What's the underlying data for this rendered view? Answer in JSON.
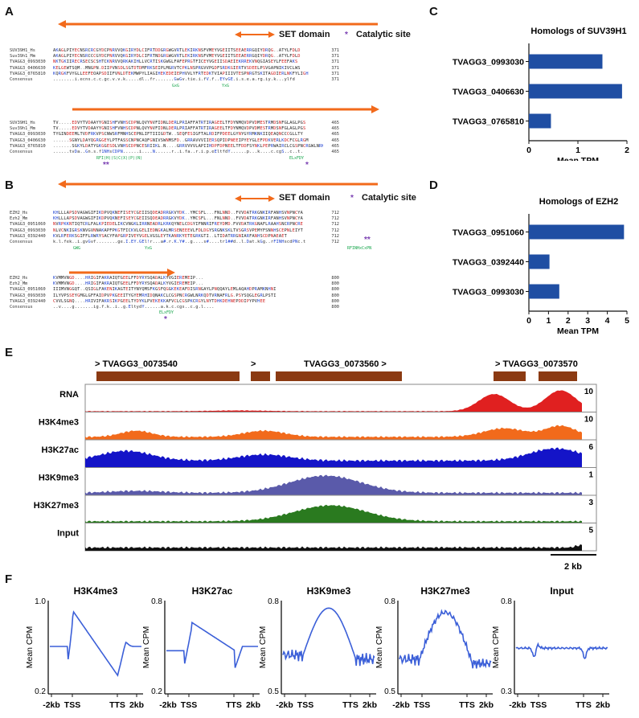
{
  "panels": {
    "A": "A",
    "B": "B",
    "C": "C",
    "D": "D",
    "E": "E",
    "F": "F"
  },
  "set_domain_label": "SET domain",
  "catalytic_label": "Catalytic site",
  "alignA": {
    "block1": [
      {
        "name": "SUV39H1_Hs",
        "seq": "AKAGLPIYECNSRCRCGYDCPNRVVQKGIRYDLCIFRTDDGRGWGVRTLEKIRKNSFVMEYVGEIITSEEAERRGQIYDRQG..ATYLFDLD",
        "num": "371"
      },
      {
        "name": "Suv39h1_Mm",
        "seq": "AKAGLPIYECNSRCCCGYDCPNRVVQKGIRYDLCIFRTNDGRGWGVRTLEKIRKNSFVMEYVGEIITSEEAERRGQIYDRQG..ATYLFDLD",
        "num": "371"
      },
      {
        "name": "TVAGG3_0993030",
        "seq": "NKTGKIIRECRSECSCSHTCKNRVVQRKAKIHLLVCRTISKGWGLFAFEPRGTFICEYVGEIISDAEIEKRREKVNQGIASEYLFEEFAKS",
        "num": "371"
      },
      {
        "name": "TVAGG3_0406630",
        "seq": "KELGEWTSQM..MNGPN.DIIPVNSDLSGTDTDMFRKSEIPLMGRVTCPKLNSPRGVVPGDFSRDKGIERTVSDEELPSVGAPNIKIVCLWS",
        "num": "371"
      },
      {
        "name": "TVAGG3_0765810",
        "seq": "KQRGKFVYGLLEEFEOAPSDIIFVNLDTEKMWPYLIAGIHEKEDEIEPHVVLYFRTEDKTVIAPIIIVTESPNRGTSKITAGDIERLNKFYLIGH",
        "num": "371"
      },
      {
        "name": "Consensus",
        "seq": "........i.ecns.c.c.gc.v.v.k.....dl..fr.......GwGv.tie.i.fV.f..EYvGE.i.s.e.a.rg.iy.k...ylfd",
        "num": "371"
      }
    ],
    "block2": [
      {
        "name": "SUV39H1_Hs",
        "seq": "TV.....EDVYTVDAAYYGNISHFVNHSCDPNLQVYNVFIDNLDERLPRIAFFATRTIRAGEELTFDYNMQVDPVDMESTRMDSNFGLAGLPGS",
        "num": "465"
      },
      {
        "name": "Suv39h1_Mm",
        "seq": "TV.....EDVYTVDAAYYGNISHFVNHSCDPNLQVYNVFIDNLDERLPRIAFFATRTIRAGEELTFDYNMQVDPVDMESTRMDSNFGLAGLPGS",
        "num": "465"
      },
      {
        "name": "TVAGG3_0993030",
        "seq": "TYGINDEEMLTVDFRKVPSCNWSRFMNHSCEPNLIFTIIIGDTW..SEQFESIGFTALRDIFPDEELGYNYGYRMKNKIIQEAQNCCCGLLTY",
        "num": "465"
      },
      {
        "name": "TVAGG3_0406630",
        "seq": "......SGNYLDAYQGRGGEYLPTFASSCNPNCAQFGNIVSWNMSFD..GRRAVVVIIERSQPIDPNEEIPYEYGLEFPDKVERLKDCFCGLRGM",
        "num": "465"
      },
      {
        "name": "TVAGG3_0765810",
        "seq": ".......SGKYLDATYGKGGESDLVNHSCDPNCESRIIKL.N....GRRVVVVLAPIIHDPFDPNEELTFDDFSYNKLPEPRWAIRCLCGSPNCRGWLNRK",
        "num": "465"
      },
      {
        "name": "Consensus",
        "seq": "......tvDa..Gn.s.f1NHsCDPN......i....N......r..i.fa..r.i.p.eEltfdY......p...k....c.cgS..c..t.",
        "num": "465"
      }
    ],
    "markers": [
      "RFI(H)(S)C(X)(P)(N)",
      "GxG",
      "YxG",
      "ELxFDY"
    ]
  },
  "alignB": {
    "block1": [
      {
        "name": "EZH2_Hs",
        "seq": "KHLLLAPSDVAGWGIFIKDPVQKNEFISEYCGEIISQDEADRRGKVYDK..YMCSFL...FNLNND..FVVDATRKGNKIRFANHSVNPNCYA",
        "num": "712"
      },
      {
        "name": "Ezh2_Mm",
        "seq": "KHLLLAPSDVAGWGIFIKDPVQKNEFISEYCGEIISQDEADRRGKVYDK..YMCSFL...FNLNND..FVVDATRKGNKIRFANHSVNPNCYA",
        "num": "712"
      },
      {
        "name": "TVAGG3_0951060",
        "seq": "NVRPKKNTIQTCRLFALKPIEDELIKCVNGKLIRRNEADRLKRKQYNELCDGYIFNNRIFREYDMD.FVVDATRKGNAFLRAAHSNCRPNCRE",
        "num": "712"
      },
      {
        "name": "TVAGG3_0993030",
        "seq": "NLVCNKIGRSKNVGVNNAKAPFPKGTFICKVLGELIEDNGKALMRSENEEEVLFDLDGYSRGNKSKLTVSGRSVPEMYFSNNHSCEPNLEIYT",
        "num": "712"
      },
      {
        "name": "TVAGG3_0392440",
        "seq": "KVLRFERKSGIFFLRWRYSACYFAPGRPIVEYVGELVGSLEYTKANRKYETEGRKGTI..LTIDATRRGNIARFANHSCDPNAEAET",
        "num": "712"
      },
      {
        "name": "Consensus",
        "seq": "k.l.fek..i.gvGvf........ge.I.EY.GEl!r...a#.r.K.Y#..g....s#....tr1##d..l.Dat.kGg..rFINHscdPNc.t",
        "num": "712"
      }
    ],
    "block2": [
      {
        "name": "EZH2_Hs",
        "seq": "KVMMVNGD....HRIGIFAKRAIQTGEELFFDYRYSQADALKYVGIEREMEIP...",
        "num": "800"
      },
      {
        "name": "Ezh2_Mm",
        "seq": "KVMMVNGD....HRIGIFAKRAIQTGEELFFDYRYSQADALKYVGIEREMEIP...",
        "num": "800"
      },
      {
        "name": "TVAGG3_0951060",
        "seq": "IIIMVNGGQT..QSIGLFAKENIKAGTEITYNYQMSFKGSFQGGKEKEAFDISRNGAYLPNQQAYLEMLAQAHDPRAMKNHNI",
        "num": "800"
      },
      {
        "name": "TVAGG3_0993030",
        "seq": "ILYVPSSEYGMGLGFFAIDPVPKGEEITYGYEMRHIDQNAKCLCGSPNCRGWLNRKQDTVRNAFRLG.PSYSQGLEGRLPSTI",
        "num": "800"
      },
      {
        "name": "TVAGG3_0392440",
        "seq": "CVVLSGNQ....HRIVIFAKRSIKPGEELTYDYKLPVEKEKKAFVCLCGSPKCRGYLNYTDHKDEHNEPDDIPYPVHEE",
        "num": "800"
      },
      {
        "name": "Consensus",
        "seq": "..v....g.......ig.f.k..i..g.EltydY......a.k.c.cgs..c.g.l....",
        "num": "800"
      }
    ],
    "markers": [
      "GWG",
      "YxG",
      "RFINHxCxPN",
      "ELxFDY"
    ]
  },
  "barC": {
    "title": "Homologs of SUV39H1",
    "xlabel": "Mean TPM",
    "chart_data": {
      "type": "bar",
      "orientation": "horizontal",
      "categories": [
        "TVAGG3_0993030",
        "TVAGG3_0406630",
        "TVAGG3_0765810"
      ],
      "values": [
        1.5,
        1.9,
        0.45
      ],
      "xlim": [
        0,
        2
      ],
      "ticks": [
        0,
        1,
        2
      ],
      "xlabel": "Mean TPM",
      "title": "Homologs of SUV39H1",
      "color": "#1f4ea3"
    }
  },
  "barD": {
    "title": "Homologs of EZH2",
    "xlabel": "Mean TPM",
    "chart_data": {
      "type": "bar",
      "orientation": "horizontal",
      "categories": [
        "TVAGG3_0951060",
        "TVAGG3_0392440",
        "TVAGG3_0993030"
      ],
      "values": [
        4.85,
        1.05,
        1.55
      ],
      "xlim": [
        0,
        5
      ],
      "ticks": [
        0,
        1,
        2,
        3,
        4,
        5
      ],
      "xlabel": "Mean TPM",
      "title": "Homologs of EZH2",
      "color": "#1f4ea3"
    }
  },
  "genome": {
    "genes": [
      {
        "label": "> TVAGG3_0073540"
      },
      {
        "label": ">"
      },
      {
        "label": "TVAGG3_0073560 >"
      },
      {
        "label": "> TVAGG3_0073570"
      }
    ],
    "tracks": [
      {
        "name": "RNA",
        "max": "10",
        "color": "#e02020"
      },
      {
        "name": "H3K4me3",
        "max": "10",
        "color": "#f26a1b"
      },
      {
        "name": "H3K27ac",
        "max": "6",
        "color": "#1414c8"
      },
      {
        "name": "H3K9me3",
        "max": "1",
        "color": "#5a5aaa"
      },
      {
        "name": "H3K27me3",
        "max": "3",
        "color": "#2a7a1f"
      },
      {
        "name": "Input",
        "max": "5",
        "color": "#111111"
      }
    ],
    "scale_label": "2 kb"
  },
  "profiles": {
    "ylabel": "Mean CPM",
    "x_ticks": [
      "-2kb",
      "TSS",
      "TTS",
      "2kb"
    ],
    "chart_data": [
      {
        "type": "line",
        "title": "H3K4me3",
        "ylim": [
          0.2,
          1.0
        ],
        "ytick_labels": [
          "1.0",
          "0.2"
        ],
        "color": "#3b5fd8"
      },
      {
        "type": "line",
        "title": "H3K27ac",
        "ylim": [
          0.2,
          0.8
        ],
        "ytick_labels": [
          "0.8",
          "0.2"
        ],
        "color": "#3b5fd8"
      },
      {
        "type": "line",
        "title": "H3K9me3",
        "ylim": [
          0.5,
          0.8
        ],
        "ytick_labels": [
          "0.8",
          "0.5"
        ],
        "color": "#3b5fd8"
      },
      {
        "type": "line",
        "title": "H3K27me3",
        "ylim": [
          0.5,
          0.8
        ],
        "ytick_labels": [
          "0.8",
          "0.5"
        ],
        "color": "#3b5fd8"
      },
      {
        "type": "line",
        "title": "Input",
        "ylim": [
          0.3,
          0.8
        ],
        "ytick_labels": [
          "0.8",
          "0.3"
        ],
        "color": "#3b5fd8"
      }
    ]
  }
}
